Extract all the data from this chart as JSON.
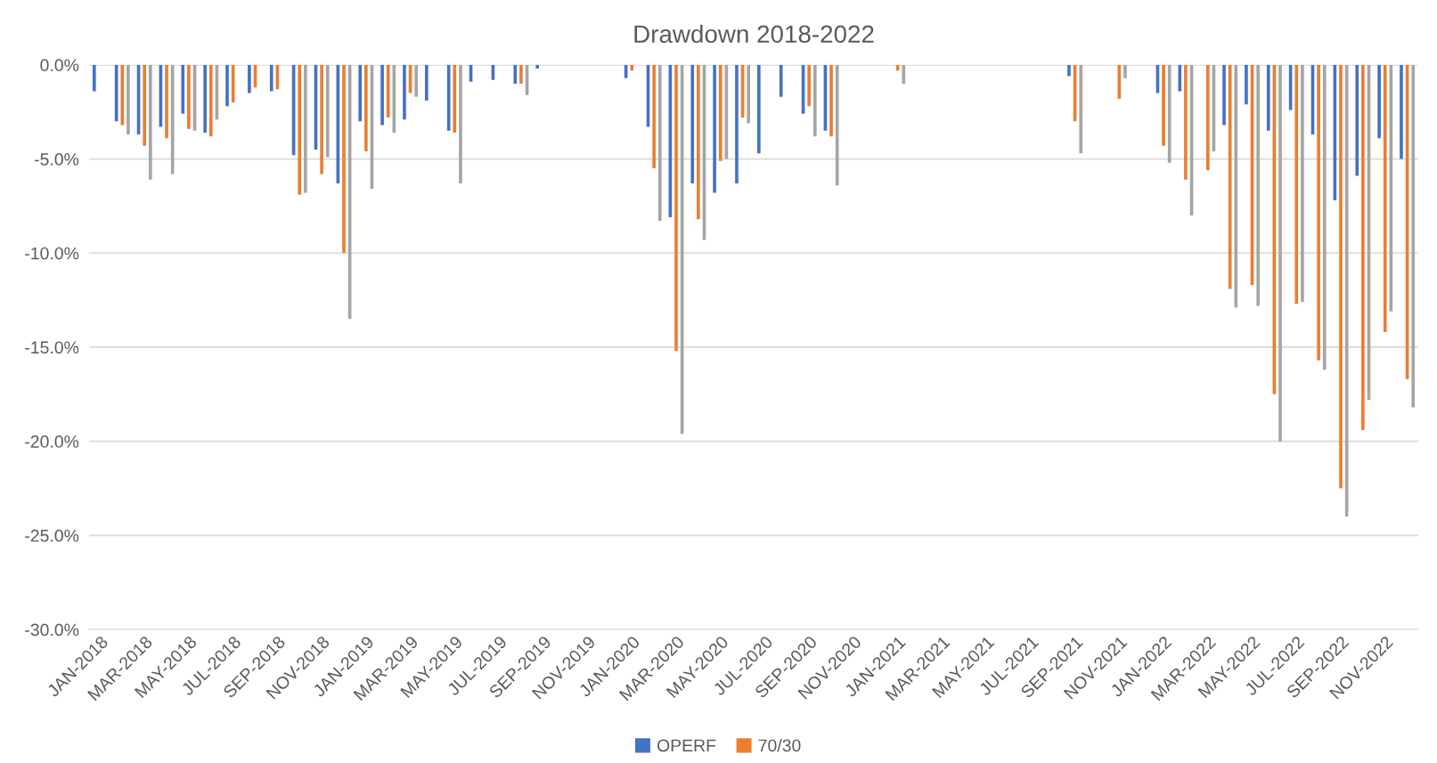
{
  "chart_data": {
    "type": "bar",
    "title": "Drawdown 2018-2022",
    "categories": [
      "JAN-2018",
      null,
      "MAR-2018",
      null,
      "MAY-2018",
      null,
      "JUL-2018",
      null,
      "SEP-2018",
      null,
      "NOV-2018",
      null,
      "JAN-2019",
      null,
      "MAR-2019",
      null,
      "MAY-2019",
      null,
      "JUL-2019",
      null,
      "SEP-2019",
      null,
      "NOV-2019",
      null,
      "JAN-2020",
      null,
      "MAR-2020",
      null,
      "MAY-2020",
      null,
      "JUL-2020",
      null,
      "SEP-2020",
      null,
      "NOV-2020",
      null,
      "JAN-2021",
      null,
      "MAR-2021",
      null,
      "MAY-2021",
      null,
      "JUL-2021",
      null,
      "SEP-2021",
      null,
      "NOV-2021",
      null,
      "JAN-2022",
      null,
      "MAR-2022",
      null,
      "MAY-2022",
      null,
      "JUL-2022",
      null,
      "SEP-2022",
      null,
      "NOV-2022",
      null
    ],
    "series": [
      {
        "name": "OPERF",
        "color": "#4472c4",
        "values": [
          -1.4,
          -3.0,
          -3.7,
          -3.3,
          -2.6,
          -3.6,
          -2.2,
          -1.5,
          -1.4,
          -4.8,
          -4.5,
          -6.3,
          -3.0,
          -3.2,
          -2.9,
          -1.9,
          -3.5,
          -0.9,
          -0.8,
          -1.0,
          -0.2,
          0,
          0,
          0,
          -0.7,
          -3.3,
          -8.1,
          -6.3,
          -6.8,
          -6.3,
          -4.7,
          -1.7,
          -2.6,
          -3.5,
          0,
          0,
          0,
          0,
          0,
          0,
          0,
          0,
          0,
          0,
          -0.6,
          0,
          0,
          0,
          -1.5,
          -1.4,
          0,
          -3.2,
          -2.1,
          -3.5,
          -2.4,
          -3.7,
          -7.2,
          -5.9,
          -3.9,
          -5.0
        ]
      },
      {
        "name": "70/30",
        "color": "#ed7d31",
        "values": [
          0,
          -3.2,
          -4.3,
          -3.9,
          -3.4,
          -3.8,
          -2.0,
          -1.2,
          -1.3,
          -6.9,
          -5.8,
          -10.0,
          -4.6,
          -2.8,
          -1.5,
          0,
          -3.6,
          0,
          0,
          -1.0,
          0,
          0,
          0,
          0,
          -0.3,
          -5.5,
          -15.2,
          -8.2,
          -5.1,
          -2.8,
          0,
          0,
          -2.2,
          -3.8,
          0,
          0,
          -0.3,
          0,
          0,
          0,
          0,
          0,
          0,
          0,
          -3.0,
          0,
          -1.8,
          0,
          -4.3,
          -6.1,
          -5.6,
          -11.9,
          -11.7,
          -17.5,
          -12.7,
          -15.7,
          -22.5,
          -19.4,
          -14.2,
          -16.7
        ]
      },
      {
        "color": "#a5a5a5",
        "values": [
          0,
          -3.7,
          -6.1,
          -5.8,
          -3.5,
          -2.9,
          0,
          0,
          0,
          -6.8,
          -4.9,
          -13.5,
          -6.6,
          -3.6,
          -1.7,
          0,
          -6.3,
          0,
          0,
          -1.6,
          0,
          0,
          0,
          0,
          0,
          -8.3,
          -19.6,
          -9.3,
          -5.0,
          -3.1,
          0,
          0,
          -3.8,
          -6.4,
          0,
          0,
          -1.0,
          0,
          0,
          0,
          0,
          0,
          0,
          0,
          -4.7,
          0,
          -0.7,
          0,
          -5.2,
          -8.0,
          -4.6,
          -12.9,
          -12.8,
          -20.0,
          -12.6,
          -16.2,
          -24.0,
          -17.8,
          -13.1,
          -18.2
        ]
      }
    ],
    "ylim": [
      -30,
      0
    ],
    "yticks": [
      {
        "value": 0,
        "label": "0.0%"
      },
      {
        "value": -5,
        "label": "-5.0%"
      },
      {
        "value": -10,
        "label": "-10.0%"
      },
      {
        "value": -15,
        "label": "-15.0%"
      },
      {
        "value": -20,
        "label": "-20.0%"
      },
      {
        "value": -25,
        "label": "-25.0%"
      },
      {
        "value": -30,
        "label": "-30.0%"
      }
    ],
    "grid": "y",
    "legend": "bottom"
  }
}
